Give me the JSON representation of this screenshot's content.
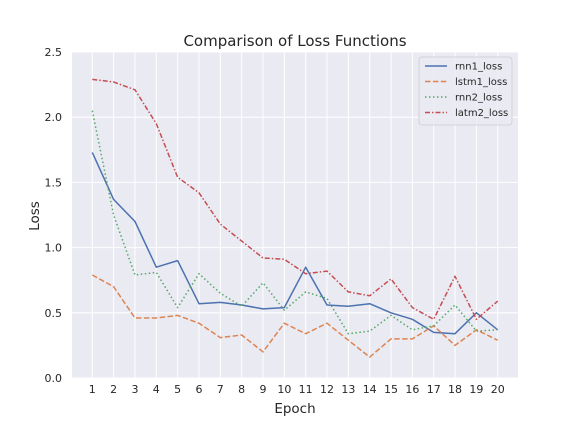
{
  "chart_data": {
    "type": "line",
    "title": "Comparison of Loss Functions",
    "xlabel": "Epoch",
    "ylabel": "Loss",
    "x": [
      1,
      2,
      3,
      4,
      5,
      6,
      7,
      8,
      9,
      10,
      11,
      12,
      13,
      14,
      15,
      16,
      17,
      18,
      19,
      20
    ],
    "xticks": [
      "1",
      "2",
      "3",
      "4",
      "5",
      "6",
      "7",
      "8",
      "9",
      "10",
      "11",
      "12",
      "13",
      "14",
      "15",
      "16",
      "17",
      "18",
      "19",
      "20"
    ],
    "ylim": [
      0,
      2.5
    ],
    "yticks": [
      "0.0",
      "0.5",
      "1.0",
      "1.5",
      "2.0",
      "2.5"
    ],
    "ytick_values": [
      0,
      0.5,
      1.0,
      1.5,
      2.0,
      2.5
    ],
    "grid": true,
    "legend_position": "top-right",
    "series": [
      {
        "name": "rnn1_loss",
        "color": "#4c72b0",
        "style": "solid",
        "values": [
          1.73,
          1.37,
          1.2,
          0.85,
          0.9,
          0.57,
          0.58,
          0.56,
          0.53,
          0.54,
          0.85,
          0.56,
          0.55,
          0.57,
          0.5,
          0.45,
          0.35,
          0.34,
          0.5,
          0.37
        ]
      },
      {
        "name": "lstm1_loss",
        "color": "#dd8452",
        "style": "dashed",
        "values": [
          0.79,
          0.7,
          0.46,
          0.46,
          0.48,
          0.42,
          0.31,
          0.33,
          0.2,
          0.42,
          0.34,
          0.42,
          0.29,
          0.16,
          0.3,
          0.3,
          0.4,
          0.25,
          0.37,
          0.29
        ]
      },
      {
        "name": "rnn2_loss",
        "color": "#55a868",
        "style": "dotted",
        "values": [
          2.05,
          1.25,
          0.79,
          0.81,
          0.54,
          0.8,
          0.65,
          0.55,
          0.73,
          0.52,
          0.66,
          0.61,
          0.34,
          0.36,
          0.48,
          0.37,
          0.4,
          0.56,
          0.36,
          0.37
        ]
      },
      {
        "name": "latm2_loss",
        "color": "#c44e52",
        "style": "dashdot",
        "values": [
          2.29,
          2.27,
          2.21,
          1.95,
          1.54,
          1.42,
          1.18,
          1.05,
          0.92,
          0.91,
          0.8,
          0.82,
          0.66,
          0.63,
          0.76,
          0.54,
          0.45,
          0.78,
          0.45,
          0.59
        ]
      }
    ]
  },
  "colors": {
    "plot_background": "#eaeaf2",
    "grid": "#ffffff",
    "text": "#262626"
  }
}
